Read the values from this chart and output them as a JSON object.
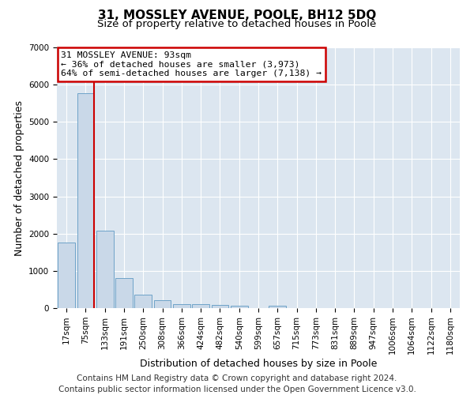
{
  "title": "31, MOSSLEY AVENUE, POOLE, BH12 5DQ",
  "subtitle": "Size of property relative to detached houses in Poole",
  "xlabel": "Distribution of detached houses by size in Poole",
  "ylabel": "Number of detached properties",
  "bin_labels": [
    "17sqm",
    "75sqm",
    "133sqm",
    "191sqm",
    "250sqm",
    "308sqm",
    "366sqm",
    "424sqm",
    "482sqm",
    "540sqm",
    "599sqm",
    "657sqm",
    "715sqm",
    "773sqm",
    "831sqm",
    "889sqm",
    "947sqm",
    "1006sqm",
    "1064sqm",
    "1122sqm",
    "1180sqm"
  ],
  "bar_heights": [
    1760,
    5780,
    2070,
    800,
    360,
    215,
    105,
    100,
    95,
    55,
    0,
    55,
    0,
    0,
    0,
    0,
    0,
    0,
    0,
    0,
    0
  ],
  "bar_color": "#c9d8e8",
  "bar_edge_color": "#6ea3c8",
  "vline_color": "#cc0000",
  "annotation_title": "31 MOSSLEY AVENUE: 93sqm",
  "annotation_line1": "← 36% of detached houses are smaller (3,973)",
  "annotation_line2": "64% of semi-detached houses are larger (7,138) →",
  "annotation_box_facecolor": "#ffffff",
  "annotation_box_edgecolor": "#cc0000",
  "ylim": [
    0,
    7000
  ],
  "yticks": [
    0,
    1000,
    2000,
    3000,
    4000,
    5000,
    6000,
    7000
  ],
  "footer_line1": "Contains HM Land Registry data © Crown copyright and database right 2024.",
  "footer_line2": "Contains public sector information licensed under the Open Government Licence v3.0.",
  "fig_bg_color": "#ffffff",
  "plot_bg_color": "#dce6f0",
  "grid_color": "#ffffff",
  "title_fontsize": 11,
  "subtitle_fontsize": 9.5,
  "axis_label_fontsize": 9,
  "tick_label_fontsize": 7.5,
  "footer_fontsize": 7.5
}
